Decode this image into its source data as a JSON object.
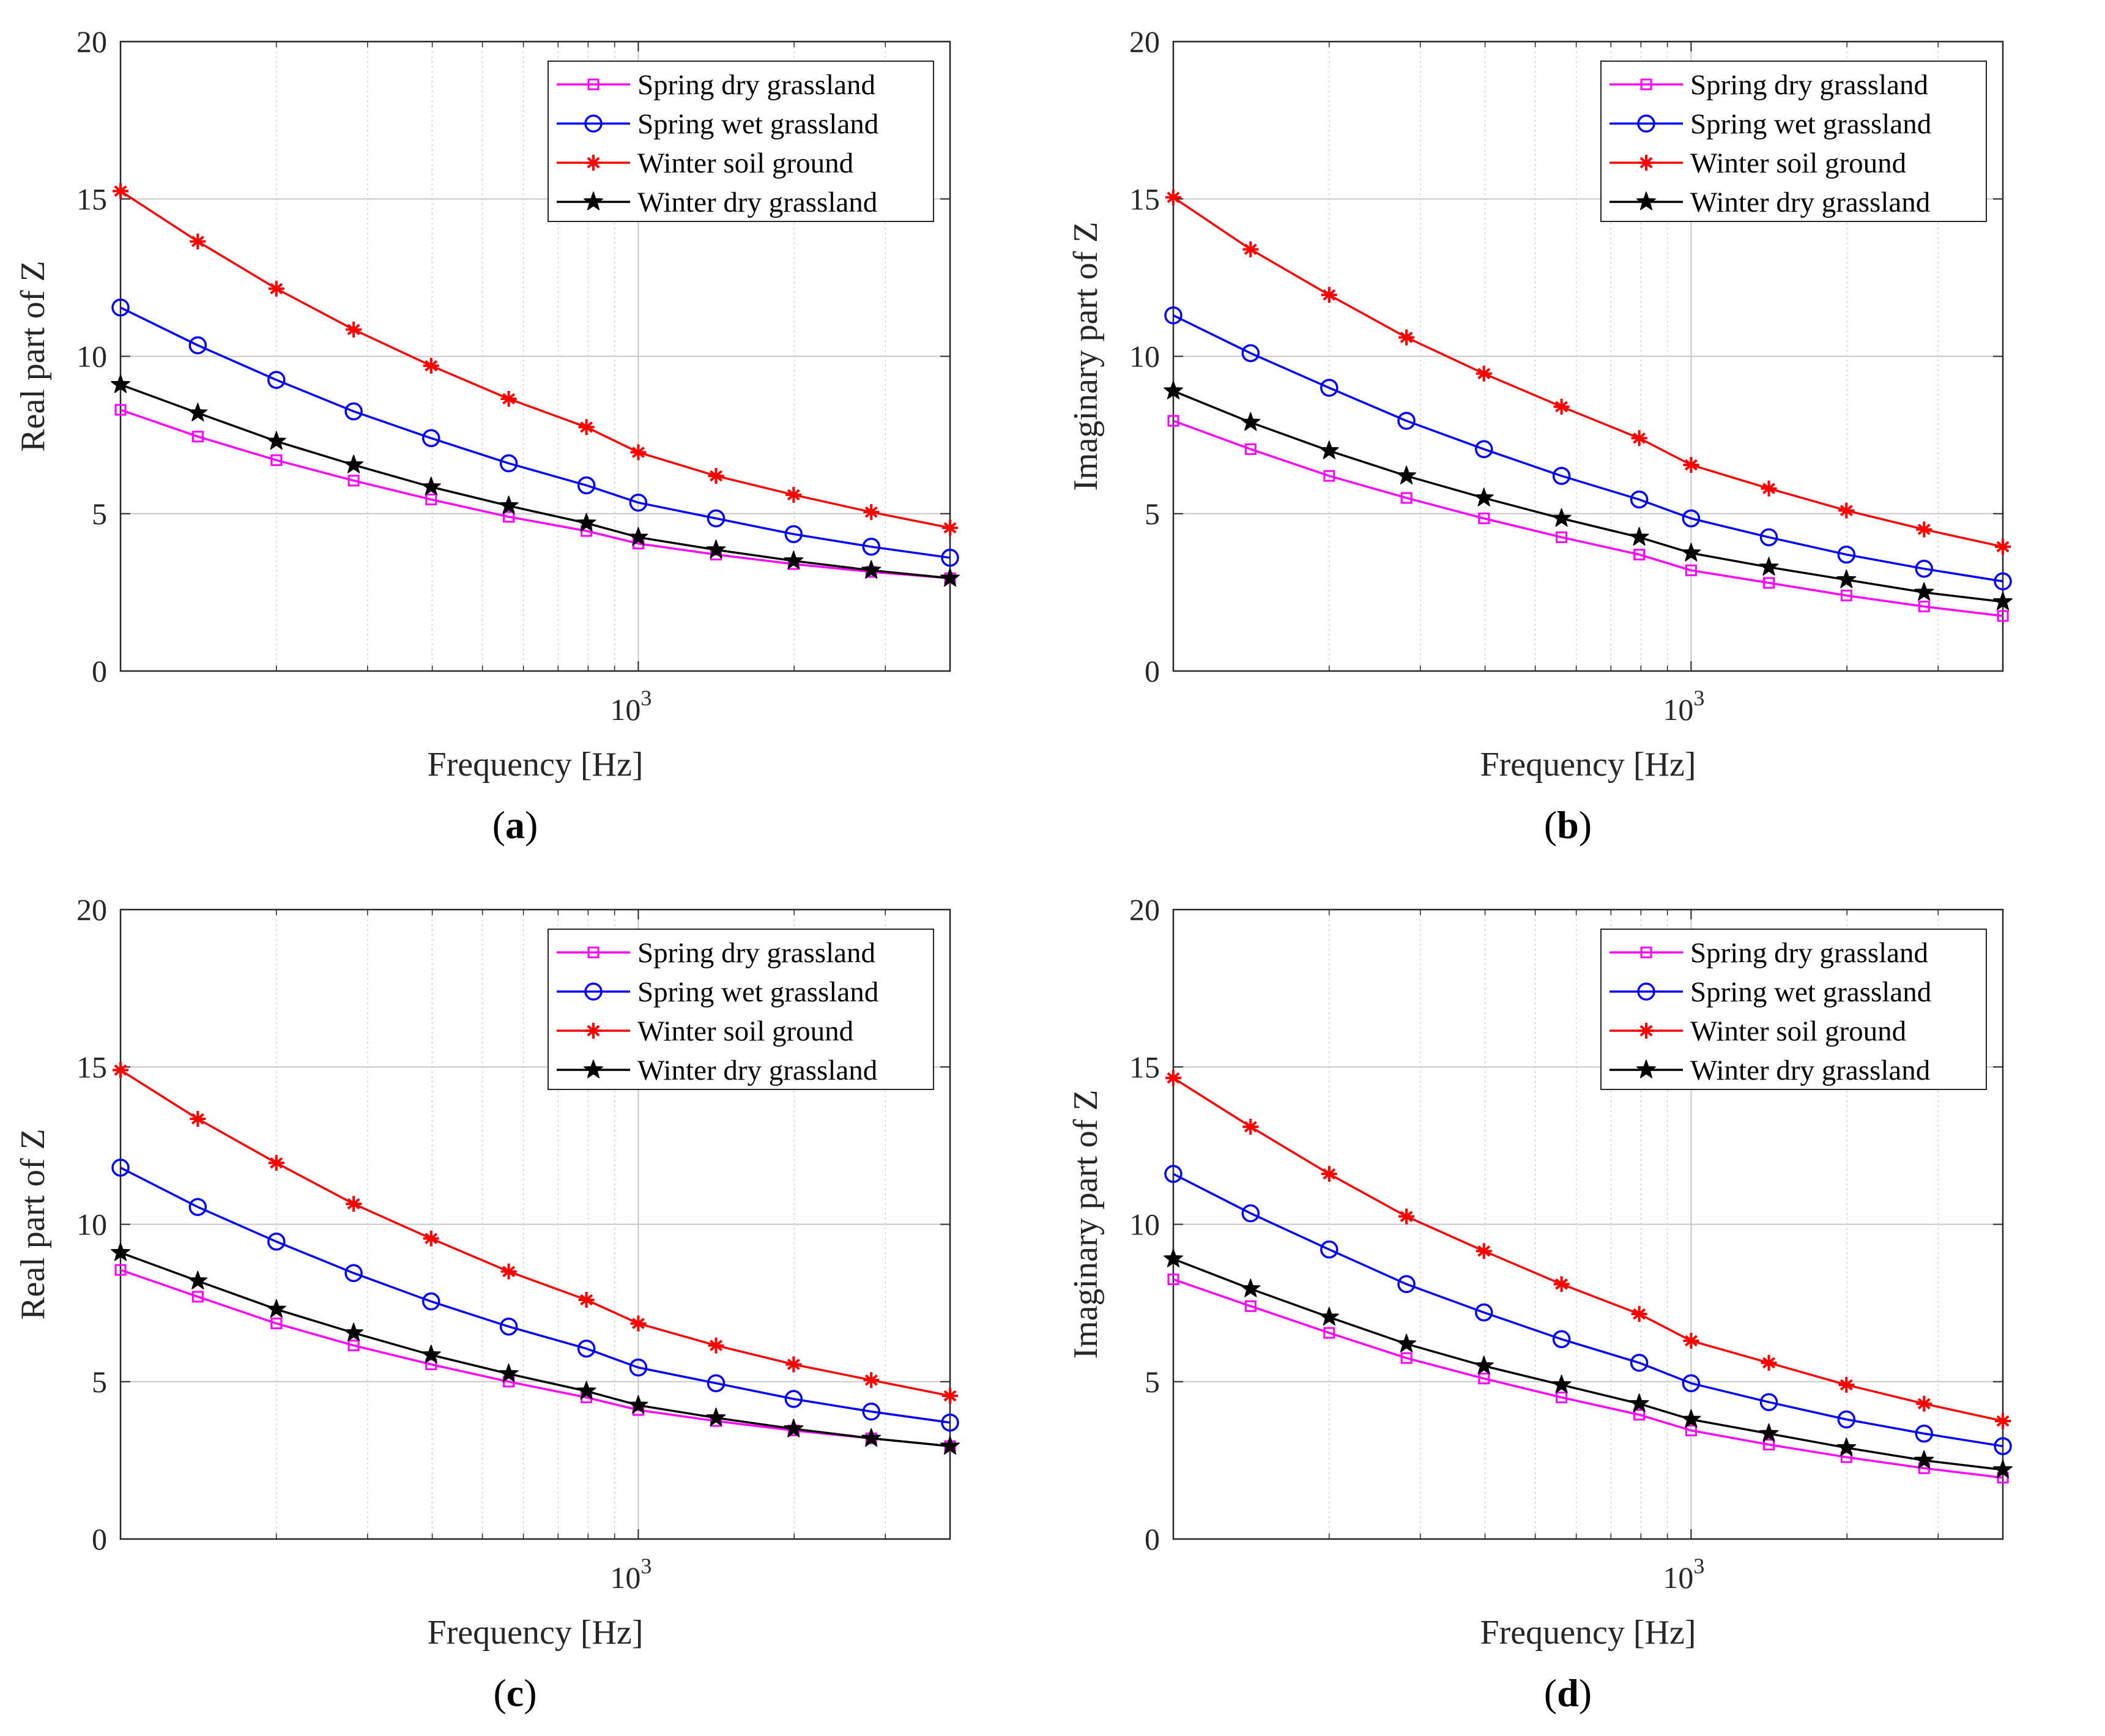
{
  "chart_data": [
    {
      "type": "line",
      "panel_label": "a",
      "xlabel": "Frequency [Hz]",
      "ylabel": "Real part of Z",
      "xscale": "log",
      "xlim": [
        100,
        4000
      ],
      "ylim": [
        0,
        20
      ],
      "yticks": [
        0,
        5,
        10,
        15,
        20
      ],
      "xticks": [
        1000
      ],
      "xtick_labels": [
        {
          "base": "10",
          "exp": "3"
        }
      ],
      "grid": true,
      "legend_position": "top-right",
      "x": [
        100,
        141,
        200,
        282,
        398,
        562,
        794,
        1000,
        1413,
        1995,
        2818,
        4000
      ],
      "series": [
        {
          "name": "Spring dry grassland",
          "marker": "square",
          "color": "#ff00ff",
          "values": [
            8.3,
            7.45,
            6.7,
            6.05,
            5.45,
            4.9,
            4.45,
            4.05,
            3.7,
            3.4,
            3.15,
            2.95
          ]
        },
        {
          "name": "Spring wet grassland",
          "marker": "circle",
          "color": "#0000ff",
          "values": [
            11.55,
            10.35,
            9.25,
            8.25,
            7.4,
            6.6,
            5.9,
            5.35,
            4.85,
            4.35,
            3.95,
            3.6
          ]
        },
        {
          "name": "Winter soil ground",
          "marker": "asterisk",
          "color": "#ff0000",
          "values": [
            15.25,
            13.65,
            12.15,
            10.85,
            9.7,
            8.65,
            7.75,
            6.95,
            6.2,
            5.6,
            5.05,
            4.55
          ]
        },
        {
          "name": "Winter dry grassland",
          "marker": "star",
          "color": "#000000",
          "values": [
            9.1,
            8.2,
            7.3,
            6.55,
            5.85,
            5.25,
            4.7,
            4.25,
            3.85,
            3.5,
            3.2,
            2.95
          ]
        }
      ]
    },
    {
      "type": "line",
      "panel_label": "b",
      "xlabel": "Frequency [Hz]",
      "ylabel": "Imaginary part of Z",
      "xscale": "log",
      "xlim": [
        100,
        4000
      ],
      "ylim": [
        0,
        20
      ],
      "yticks": [
        0,
        5,
        10,
        15,
        20
      ],
      "xticks": [
        1000
      ],
      "xtick_labels": [
        {
          "base": "10",
          "exp": "3"
        }
      ],
      "grid": true,
      "legend_position": "top-right",
      "x": [
        100,
        141,
        200,
        282,
        398,
        562,
        794,
        1000,
        1413,
        1995,
        2818,
        4000
      ],
      "series": [
        {
          "name": "Spring dry grassland",
          "marker": "square",
          "color": "#ff00ff",
          "values": [
            7.95,
            7.05,
            6.2,
            5.5,
            4.85,
            4.25,
            3.7,
            3.2,
            2.8,
            2.4,
            2.05,
            1.75
          ]
        },
        {
          "name": "Spring wet grassland",
          "marker": "circle",
          "color": "#0000ff",
          "values": [
            11.3,
            10.1,
            9.0,
            7.95,
            7.05,
            6.2,
            5.45,
            4.85,
            4.25,
            3.7,
            3.25,
            2.85
          ]
        },
        {
          "name": "Winter soil ground",
          "marker": "asterisk",
          "color": "#ff0000",
          "values": [
            15.05,
            13.4,
            11.95,
            10.6,
            9.45,
            8.4,
            7.4,
            6.55,
            5.8,
            5.1,
            4.5,
            3.95
          ]
        },
        {
          "name": "Winter dry grassland",
          "marker": "star",
          "color": "#000000",
          "values": [
            8.9,
            7.9,
            7.0,
            6.2,
            5.5,
            4.85,
            4.25,
            3.75,
            3.3,
            2.9,
            2.5,
            2.2
          ]
        }
      ]
    },
    {
      "type": "line",
      "panel_label": "c",
      "xlabel": "Frequency [Hz]",
      "ylabel": "Real part of Z",
      "xscale": "log",
      "xlim": [
        100,
        4000
      ],
      "ylim": [
        0,
        20
      ],
      "yticks": [
        0,
        5,
        10,
        15,
        20
      ],
      "xticks": [
        1000
      ],
      "xtick_labels": [
        {
          "base": "10",
          "exp": "3"
        }
      ],
      "grid": true,
      "legend_position": "top-right",
      "x": [
        100,
        141,
        200,
        282,
        398,
        562,
        794,
        1000,
        1413,
        1995,
        2818,
        4000
      ],
      "series": [
        {
          "name": "Spring dry grassland",
          "marker": "square",
          "color": "#ff00ff",
          "values": [
            8.55,
            7.7,
            6.85,
            6.15,
            5.55,
            5.0,
            4.5,
            4.1,
            3.75,
            3.45,
            3.2,
            2.95
          ]
        },
        {
          "name": "Spring wet grassland",
          "marker": "circle",
          "color": "#0000ff",
          "values": [
            11.8,
            10.55,
            9.45,
            8.45,
            7.55,
            6.75,
            6.05,
            5.45,
            4.95,
            4.45,
            4.05,
            3.7
          ]
        },
        {
          "name": "Winter soil ground",
          "marker": "asterisk",
          "color": "#ff0000",
          "values": [
            14.9,
            13.35,
            11.95,
            10.65,
            9.55,
            8.5,
            7.6,
            6.85,
            6.15,
            5.55,
            5.05,
            4.55
          ]
        },
        {
          "name": "Winter dry grassland",
          "marker": "star",
          "color": "#000000",
          "values": [
            9.1,
            8.2,
            7.3,
            6.55,
            5.85,
            5.25,
            4.7,
            4.25,
            3.85,
            3.5,
            3.2,
            2.95
          ]
        }
      ]
    },
    {
      "type": "line",
      "panel_label": "d",
      "xlabel": "Frequency [Hz]",
      "ylabel": "Imaginary part of Z",
      "xscale": "log",
      "xlim": [
        100,
        4000
      ],
      "ylim": [
        0,
        20
      ],
      "yticks": [
        0,
        5,
        10,
        15,
        20
      ],
      "xticks": [
        1000
      ],
      "xtick_labels": [
        {
          "base": "10",
          "exp": "3"
        }
      ],
      "grid": true,
      "legend_position": "top-right",
      "x": [
        100,
        141,
        200,
        282,
        398,
        562,
        794,
        1000,
        1413,
        1995,
        2818,
        4000
      ],
      "series": [
        {
          "name": "Spring dry grassland",
          "marker": "square",
          "color": "#ff00ff",
          "values": [
            8.25,
            7.4,
            6.55,
            5.75,
            5.1,
            4.5,
            3.95,
            3.45,
            3.0,
            2.6,
            2.25,
            1.95
          ]
        },
        {
          "name": "Spring wet grassland",
          "marker": "circle",
          "color": "#0000ff",
          "values": [
            11.6,
            10.35,
            9.2,
            8.1,
            7.2,
            6.35,
            5.6,
            4.95,
            4.35,
            3.8,
            3.35,
            2.95
          ]
        },
        {
          "name": "Winter soil ground",
          "marker": "asterisk",
          "color": "#ff0000",
          "values": [
            14.65,
            13.1,
            11.6,
            10.25,
            9.15,
            8.1,
            7.15,
            6.3,
            5.6,
            4.9,
            4.3,
            3.75
          ]
        },
        {
          "name": "Winter dry grassland",
          "marker": "star",
          "color": "#000000",
          "values": [
            8.9,
            7.95,
            7.05,
            6.2,
            5.5,
            4.9,
            4.3,
            3.8,
            3.35,
            2.9,
            2.5,
            2.2
          ]
        }
      ]
    }
  ]
}
